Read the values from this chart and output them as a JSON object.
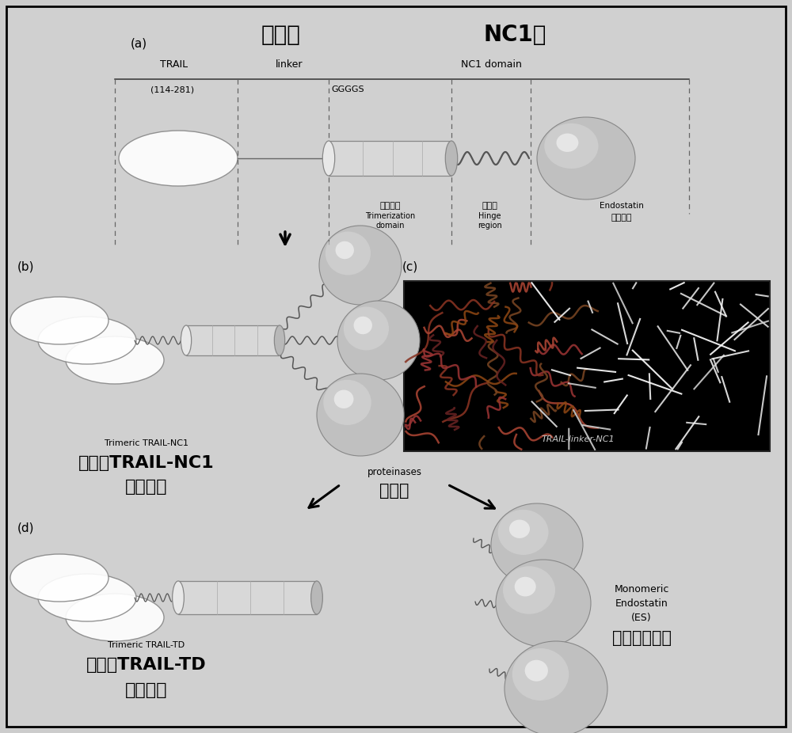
{
  "bg_color": "#cccccc",
  "panel_bg": "#d0d0d0",
  "title_a": "(a)",
  "title_b": "(b)",
  "title_c": "(c)",
  "title_d": "(d)",
  "cn_lianjietai": "连接肽",
  "cn_NC1yu": "NC1域",
  "en_TRAIL": "TRAIL",
  "en_linker": "linker",
  "en_NC1domain": "NC1 domain",
  "en_114281": "(114-281)",
  "en_GGGGS": "GGGGS",
  "cn_sanju": "三聚区域",
  "en_Trimerization": "Trimerization",
  "en_domain": "domain",
  "cn_jiaolian": "铰链区",
  "en_Hinge": "Hinge",
  "en_region": "region",
  "en_Endostatin": "Endostatin",
  "cn_neipiyi": "内皮抑素",
  "en_trimeric_nc1": "Trimeric TRAIL-NC1",
  "cn_trimeric_nc1_1": "三聚的TRAIL-NC1",
  "cn_trimeric_nc1_2": "融合蛋白",
  "en_proteinases": "proteinases",
  "cn_proteinases": "蛋白酶",
  "en_trimeric_td": "Trimeric TRAIL-TD",
  "cn_trimeric_td_1": "三聚的TRAIL-TD",
  "cn_trimeric_td_2": "融合蛋白",
  "en_Monomeric": "Monomeric",
  "en_Endostatin2": "Endostatin",
  "en_ES": "(ES)",
  "cn_mono": "单体内皮抑素",
  "en_trail_linker_nc1": "TRAIL-linker-NC1",
  "sphere_gray": "#c0c0c0",
  "ellipse_fill": "#dcdcdc",
  "cyl_fill": "#d8d8d8"
}
